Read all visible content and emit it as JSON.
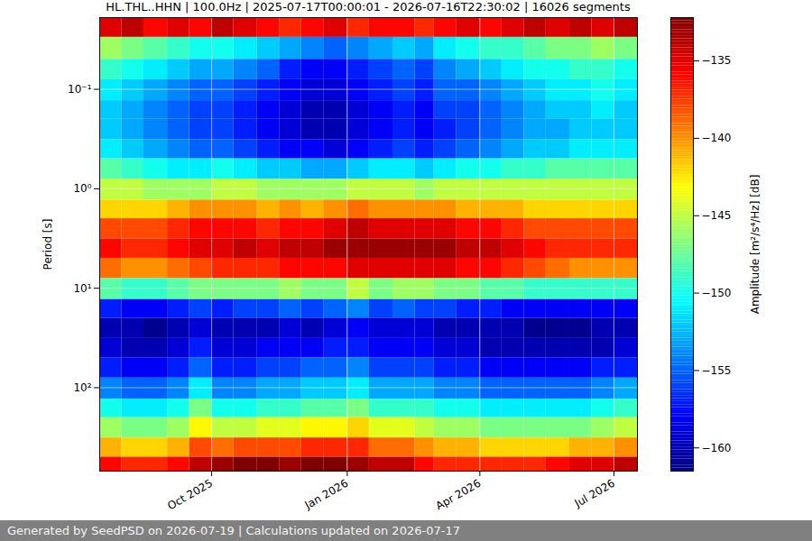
{
  "chart_data": {
    "type": "heatmap",
    "title": "HL.THL..HHN | 100.0Hz | 2025-07-17T00:00:01 - 2026-07-16T22:30:02 | 16026 segments",
    "footer": "Generated by SeedPSD on 2026-07-19 | Calculations updated on 2026-07-17",
    "y_label": "Period [s]",
    "log": "y",
    "grid": true,
    "xlim": [
      "2025-07-17T00:00:01",
      "2026-07-16T22:30:02"
    ],
    "xticks": [
      {
        "value": "2025-10-01",
        "label": "Oct 2025"
      },
      {
        "value": "2026-01-01",
        "label": "Jan 2026"
      },
      {
        "value": "2026-04-01",
        "label": "Apr 2026"
      },
      {
        "value": "2026-07-01",
        "label": "Jul 2026"
      }
    ],
    "ylim": [
      0.019,
      690
    ],
    "yticks": [
      {
        "value": 0.1,
        "label": "10⁻¹"
      },
      {
        "value": 1,
        "label": "10⁰"
      },
      {
        "value": 10,
        "label": "10¹"
      },
      {
        "value": 100,
        "label": "10²"
      }
    ],
    "x_edges": [
      "2025-07-17T00:00:01",
      "2025-08-01",
      "2025-08-16",
      "2025-09-01",
      "2025-09-16",
      "2025-10-01",
      "2025-10-16",
      "2025-11-01",
      "2025-11-16",
      "2025-12-01",
      "2025-12-16",
      "2026-01-01",
      "2026-01-16",
      "2026-02-01",
      "2026-02-16",
      "2026-03-01",
      "2026-03-16",
      "2026-04-01",
      "2026-04-16",
      "2026-05-01",
      "2026-05-16",
      "2026-06-01",
      "2026-06-16",
      "2026-07-01",
      "2026-07-16T22:30:02"
    ],
    "y_edges": [
      0.019,
      0.03,
      0.05,
      0.08,
      0.13,
      0.2,
      0.32,
      0.5,
      0.8,
      1.3,
      2,
      3.2,
      5,
      8,
      13,
      20,
      32,
      50,
      80,
      130,
      200,
      320,
      500,
      690
    ],
    "values": [
      [
        -135,
        -134,
        -136,
        -135,
        -136,
        -134,
        -135,
        -136,
        -137,
        -136,
        -135,
        -137,
        -136,
        -136,
        -137,
        -136,
        -135,
        -136,
        -135,
        -134,
        -135,
        -134,
        -135,
        -134
      ],
      [
        -146,
        -147,
        -148,
        -149,
        -150,
        -150,
        -151,
        -152,
        -153,
        -154,
        -155,
        -154,
        -153,
        -152,
        -153,
        -151,
        -150,
        -149,
        -149,
        -148,
        -147,
        -147,
        -146,
        -147
      ],
      [
        -149,
        -150,
        -151,
        -152,
        -153,
        -153,
        -154,
        -155,
        -157,
        -158,
        -158,
        -157,
        -156,
        -155,
        -156,
        -154,
        -153,
        -152,
        -151,
        -150,
        -150,
        -149,
        -149,
        -150
      ],
      [
        -151,
        -152,
        -153,
        -154,
        -155,
        -155,
        -156,
        -157,
        -158,
        -159,
        -159,
        -158,
        -157,
        -156,
        -157,
        -155,
        -155,
        -154,
        -153,
        -152,
        -151,
        -151,
        -150,
        -151
      ],
      [
        -152,
        -153,
        -154,
        -155,
        -156,
        -156,
        -157,
        -158,
        -159,
        -160,
        -160,
        -159,
        -158,
        -157,
        -158,
        -156,
        -156,
        -155,
        -154,
        -153,
        -152,
        -152,
        -151,
        -152
      ],
      [
        -152,
        -153,
        -154,
        -155,
        -156,
        -156,
        -157,
        -158,
        -159,
        -160,
        -160,
        -159,
        -158,
        -157,
        -158,
        -157,
        -156,
        -155,
        -154,
        -153,
        -153,
        -152,
        -152,
        -152
      ],
      [
        -151,
        -152,
        -153,
        -154,
        -155,
        -155,
        -156,
        -157,
        -158,
        -158,
        -159,
        -158,
        -157,
        -156,
        -157,
        -156,
        -155,
        -154,
        -153,
        -152,
        -152,
        -151,
        -151,
        -151
      ],
      [
        -148,
        -149,
        -150,
        -151,
        -151,
        -150,
        -151,
        -152,
        -152,
        -153,
        -153,
        -152,
        -151,
        -151,
        -152,
        -151,
        -150,
        -150,
        -149,
        -149,
        -148,
        -148,
        -148,
        -148
      ],
      [
        -145,
        -145,
        -146,
        -146,
        -146,
        -145,
        -145,
        -146,
        -146,
        -146,
        -146,
        -145,
        -145,
        -145,
        -146,
        -145,
        -145,
        -145,
        -145,
        -145,
        -145,
        -145,
        -145,
        -145
      ],
      [
        -142,
        -142,
        -142,
        -141,
        -140,
        -140,
        -140,
        -141,
        -140,
        -141,
        -140,
        -139,
        -140,
        -140,
        -140,
        -140,
        -141,
        -141,
        -141,
        -142,
        -142,
        -142,
        -142,
        -142
      ],
      [
        -138,
        -138,
        -138,
        -137,
        -136,
        -136,
        -136,
        -137,
        -136,
        -136,
        -135,
        -134,
        -135,
        -135,
        -135,
        -135,
        -136,
        -136,
        -137,
        -138,
        -138,
        -138,
        -138,
        -138
      ],
      [
        -136,
        -137,
        -137,
        -136,
        -135,
        -135,
        -134,
        -135,
        -134,
        -134,
        -133,
        -133,
        -133,
        -133,
        -133,
        -133,
        -134,
        -134,
        -135,
        -136,
        -137,
        -137,
        -137,
        -137
      ],
      [
        -139,
        -140,
        -140,
        -139,
        -138,
        -137,
        -137,
        -137,
        -136,
        -136,
        -136,
        -135,
        -135,
        -135,
        -135,
        -135,
        -136,
        -136,
        -137,
        -138,
        -139,
        -140,
        -140,
        -140
      ],
      [
        -148,
        -149,
        -149,
        -148,
        -147,
        -147,
        -147,
        -147,
        -146,
        -147,
        -147,
        -145,
        -147,
        -146,
        -146,
        -147,
        -147,
        -148,
        -148,
        -149,
        -149,
        -149,
        -149,
        -149
      ],
      [
        -157,
        -158,
        -158,
        -157,
        -156,
        -157,
        -156,
        -156,
        -155,
        -156,
        -155,
        -154,
        -156,
        -155,
        -156,
        -156,
        -157,
        -157,
        -158,
        -158,
        -158,
        -158,
        -158,
        -158
      ],
      [
        -160,
        -160,
        -161,
        -160,
        -159,
        -160,
        -160,
        -160,
        -159,
        -160,
        -159,
        -158,
        -159,
        -159,
        -159,
        -160,
        -160,
        -160,
        -160,
        -161,
        -161,
        -161,
        -160,
        -160
      ],
      [
        -159,
        -160,
        -160,
        -159,
        -157,
        -159,
        -159,
        -158,
        -158,
        -158,
        -157,
        -157,
        -158,
        -158,
        -158,
        -159,
        -159,
        -160,
        -160,
        -160,
        -160,
        -160,
        -160,
        -159
      ],
      [
        -157,
        -158,
        -158,
        -157,
        -155,
        -157,
        -157,
        -156,
        -156,
        -155,
        -155,
        -154,
        -156,
        -156,
        -156,
        -157,
        -157,
        -158,
        -158,
        -158,
        -158,
        -158,
        -157,
        -157
      ],
      [
        -154,
        -155,
        -155,
        -154,
        -151,
        -154,
        -154,
        -153,
        -153,
        -152,
        -152,
        -151,
        -153,
        -153,
        -153,
        -154,
        -154,
        -155,
        -155,
        -155,
        -155,
        -155,
        -154,
        -153
      ],
      [
        -150,
        -151,
        -151,
        -150,
        -147,
        -150,
        -150,
        -149,
        -149,
        -148,
        -148,
        -147,
        -149,
        -149,
        -149,
        -150,
        -150,
        -151,
        -151,
        -151,
        -151,
        -151,
        -150,
        -149
      ],
      [
        -146,
        -147,
        -147,
        -146,
        -143,
        -145,
        -145,
        -144,
        -144,
        -143,
        -143,
        -142,
        -144,
        -144,
        -145,
        -146,
        -146,
        -147,
        -147,
        -147,
        -147,
        -147,
        -146,
        -145
      ],
      [
        -141,
        -142,
        -142,
        -141,
        -138,
        -139,
        -138,
        -138,
        -138,
        -137,
        -137,
        -137,
        -139,
        -139,
        -140,
        -141,
        -141,
        -142,
        -142,
        -142,
        -142,
        -141,
        -141,
        -140
      ],
      [
        -136,
        -137,
        -137,
        -136,
        -134,
        -133,
        -132,
        -132,
        -133,
        -132,
        -132,
        -133,
        -134,
        -134,
        -136,
        -137,
        -137,
        -137,
        -137,
        -137,
        -136,
        -135,
        -135,
        -134
      ]
    ],
    "colorbar": {
      "label": "Amplitude [m²/s⁴/Hz] [dB]",
      "range": [
        -161.5,
        -132.2
      ],
      "ticks": [
        -135,
        -140,
        -145,
        -150,
        -155,
        -160
      ]
    }
  }
}
